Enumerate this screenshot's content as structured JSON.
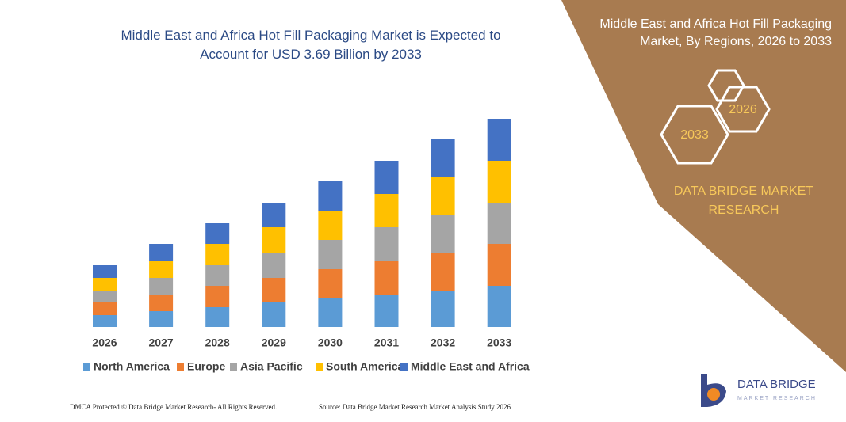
{
  "chart_data": {
    "type": "bar",
    "stacked": true,
    "title": "Middle East and Africa Hot Fill Packaging Market is Expected to Account for USD 3.69 Billion by 2033",
    "categories": [
      "2026",
      "2027",
      "2028",
      "2029",
      "2030",
      "2031",
      "2032",
      "2033"
    ],
    "series": [
      {
        "name": "North America",
        "color": "#5b9bd5",
        "values": [
          15,
          20,
          25,
          31,
          36,
          41,
          46,
          52
        ]
      },
      {
        "name": "Europe",
        "color": "#ed7d31",
        "values": [
          16,
          21,
          27,
          31,
          37,
          42,
          48,
          53
        ]
      },
      {
        "name": "Asia Pacific",
        "color": "#a5a5a5",
        "values": [
          15,
          21,
          26,
          32,
          37,
          43,
          48,
          52
        ]
      },
      {
        "name": "South America",
        "color": "#ffc000",
        "values": [
          16,
          21,
          27,
          32,
          37,
          42,
          47,
          53
        ]
      },
      {
        "name": "Middle East and Africa",
        "color": "#4472c4",
        "values": [
          16,
          22,
          26,
          31,
          37,
          42,
          48,
          53
        ]
      }
    ],
    "legend": "bottom"
  },
  "side_panel": {
    "title": "Middle East and Africa Hot Fill Packaging Market, By Regions, 2026 to 2033",
    "hexagons": [
      "2026",
      "2033"
    ],
    "brand": "DATA BRIDGE MARKET RESEARCH"
  },
  "logo": {
    "name": "DATA BRIDGE",
    "tagline": "MARKET RESEARCH"
  },
  "footer": {
    "left": "DMCA Protected © Data Bridge Market Research- All Rights Reserved.",
    "right": "Source: Data Bridge Market Research Market Analysis Study 2026"
  }
}
